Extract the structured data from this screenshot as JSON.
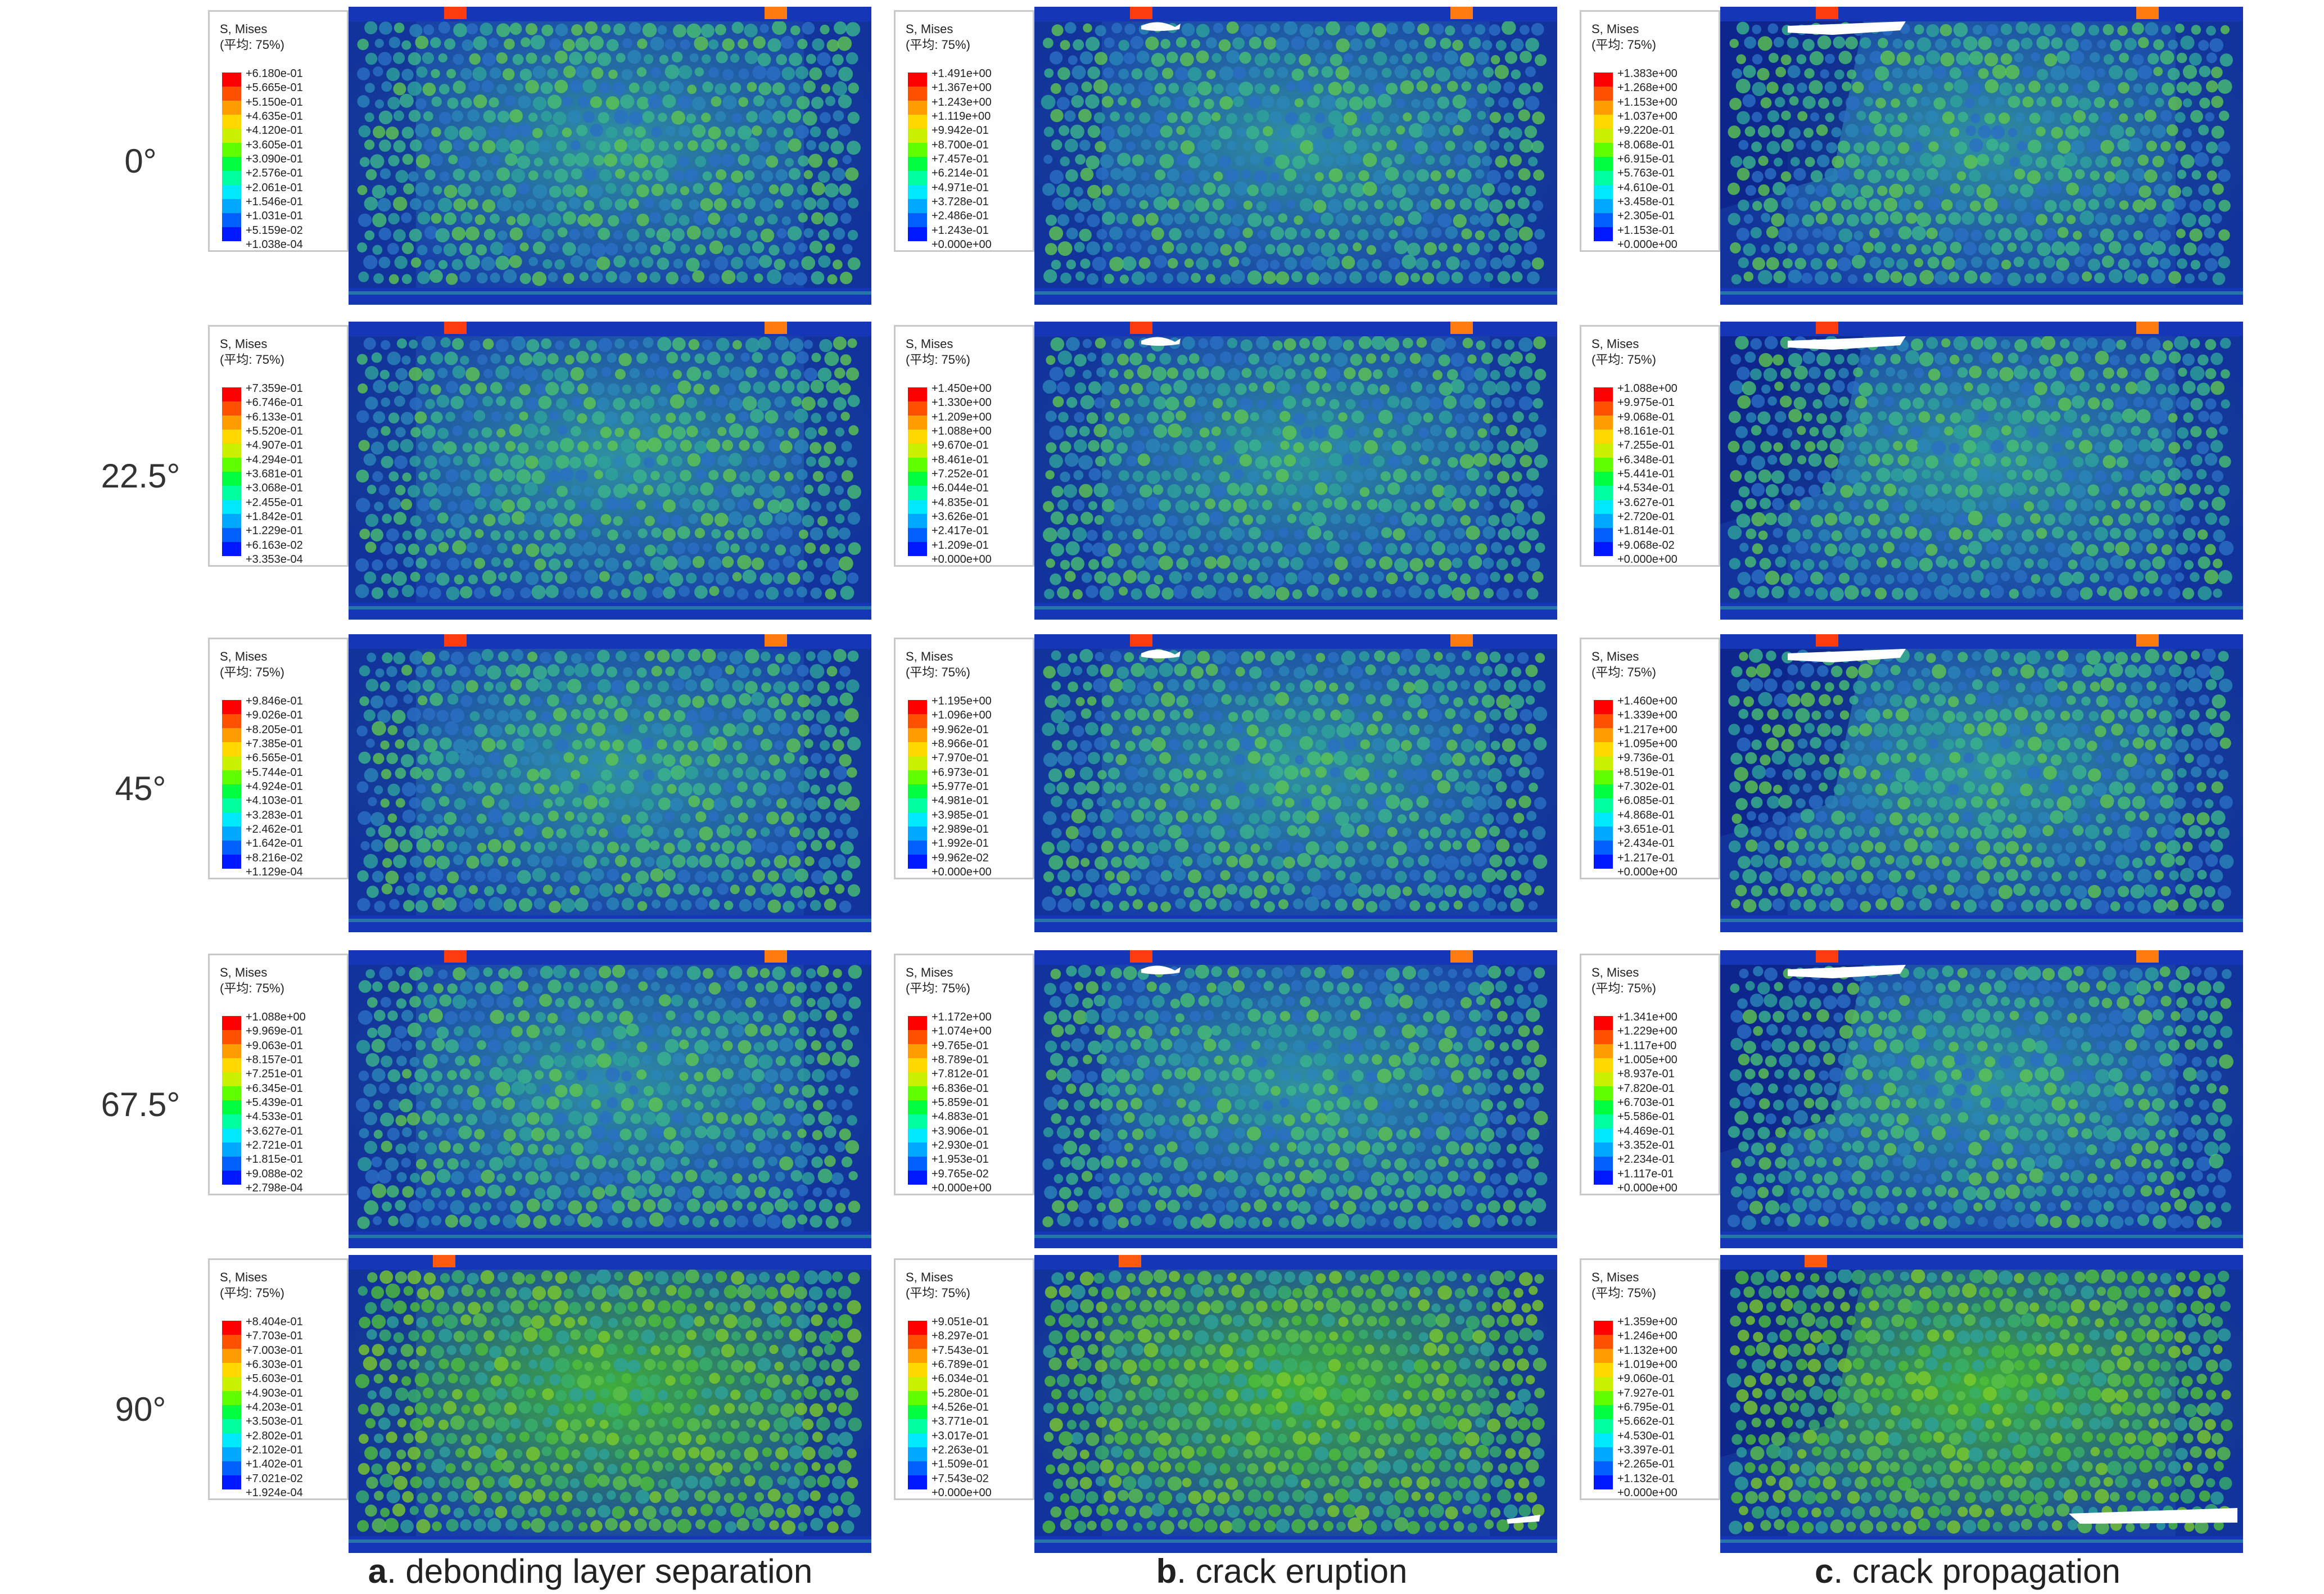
{
  "rows": [
    {
      "label": "0°"
    },
    {
      "label": "22.5°"
    },
    {
      "label": "45°"
    },
    {
      "label": "67.5°"
    },
    {
      "label": "90°"
    }
  ],
  "captions": [
    {
      "letter": "a",
      "text": ". debonding layer separation"
    },
    {
      "letter": "b",
      "text": ". crack eruption"
    },
    {
      "letter": "c",
      "text": ". crack propagation"
    }
  ],
  "legend_title": "S, Mises",
  "legend_subtitle": "(平均: 75%)",
  "legend_colors": [
    "#ff0000",
    "#ff5000",
    "#ff9c00",
    "#ffd800",
    "#c8f000",
    "#60ff00",
    "#00ff40",
    "#00ffa0",
    "#00e8ff",
    "#00a8ff",
    "#0060ff",
    "#0018ff"
  ],
  "legends": [
    [
      "+6.180e-01",
      "+5.665e-01",
      "+5.150e-01",
      "+4.635e-01",
      "+4.120e-01",
      "+3.605e-01",
      "+3.090e-01",
      "+2.576e-01",
      "+2.061e-01",
      "+1.546e-01",
      "+1.031e-01",
      "+5.159e-02",
      "+1.038e-04"
    ],
    [
      "+1.491e+00",
      "+1.367e+00",
      "+1.243e+00",
      "+1.119e+00",
      "+9.942e-01",
      "+8.700e-01",
      "+7.457e-01",
      "+6.214e-01",
      "+4.971e-01",
      "+3.728e-01",
      "+2.486e-01",
      "+1.243e-01",
      "+0.000e+00"
    ],
    [
      "+1.383e+00",
      "+1.268e+00",
      "+1.153e+00",
      "+1.037e+00",
      "+9.220e-01",
      "+8.068e-01",
      "+6.915e-01",
      "+5.763e-01",
      "+4.610e-01",
      "+3.458e-01",
      "+2.305e-01",
      "+1.153e-01",
      "+0.000e+00"
    ],
    [
      "+7.359e-01",
      "+6.746e-01",
      "+6.133e-01",
      "+5.520e-01",
      "+4.907e-01",
      "+4.294e-01",
      "+3.681e-01",
      "+3.068e-01",
      "+2.455e-01",
      "+1.842e-01",
      "+1.229e-01",
      "+6.163e-02",
      "+3.353e-04"
    ],
    [
      "+1.450e+00",
      "+1.330e+00",
      "+1.209e+00",
      "+1.088e+00",
      "+9.670e-01",
      "+8.461e-01",
      "+7.252e-01",
      "+6.044e-01",
      "+4.835e-01",
      "+3.626e-01",
      "+2.417e-01",
      "+1.209e-01",
      "+0.000e+00"
    ],
    [
      "+1.088e+00",
      "+9.975e-01",
      "+9.068e-01",
      "+8.161e-01",
      "+7.255e-01",
      "+6.348e-01",
      "+5.441e-01",
      "+4.534e-01",
      "+3.627e-01",
      "+2.720e-01",
      "+1.814e-01",
      "+9.068e-02",
      "+0.000e+00"
    ],
    [
      "+9.846e-01",
      "+9.026e-01",
      "+8.205e-01",
      "+7.385e-01",
      "+6.565e-01",
      "+5.744e-01",
      "+4.924e-01",
      "+4.103e-01",
      "+3.283e-01",
      "+2.462e-01",
      "+1.642e-01",
      "+8.216e-02",
      "+1.129e-04"
    ],
    [
      "+1.195e+00",
      "+1.096e+00",
      "+9.962e-01",
      "+8.966e-01",
      "+7.970e-01",
      "+6.973e-01",
      "+5.977e-01",
      "+4.981e-01",
      "+3.985e-01",
      "+2.989e-01",
      "+1.992e-01",
      "+9.962e-02",
      "+0.000e+00"
    ],
    [
      "+1.460e+00",
      "+1.339e+00",
      "+1.217e+00",
      "+1.095e+00",
      "+9.736e-01",
      "+8.519e-01",
      "+7.302e-01",
      "+6.085e-01",
      "+4.868e-01",
      "+3.651e-01",
      "+2.434e-01",
      "+1.217e-01",
      "+0.000e+00"
    ],
    [
      "+1.088e+00",
      "+9.969e-01",
      "+9.063e-01",
      "+8.157e-01",
      "+7.251e-01",
      "+6.345e-01",
      "+5.439e-01",
      "+4.533e-01",
      "+3.627e-01",
      "+2.721e-01",
      "+1.815e-01",
      "+9.088e-02",
      "+2.798e-04"
    ],
    [
      "+1.172e+00",
      "+1.074e+00",
      "+9.765e-01",
      "+8.789e-01",
      "+7.812e-01",
      "+6.836e-01",
      "+5.859e-01",
      "+4.883e-01",
      "+3.906e-01",
      "+2.930e-01",
      "+1.953e-01",
      "+9.765e-02",
      "+0.000e+00"
    ],
    [
      "+1.341e+00",
      "+1.229e+00",
      "+1.117e+00",
      "+1.005e+00",
      "+8.937e-01",
      "+7.820e-01",
      "+6.703e-01",
      "+5.586e-01",
      "+4.469e-01",
      "+3.352e-01",
      "+2.234e-01",
      "+1.117e-01",
      "+0.000e+00"
    ],
    [
      "+8.404e-01",
      "+7.703e-01",
      "+7.003e-01",
      "+6.303e-01",
      "+5.603e-01",
      "+4.903e-01",
      "+4.203e-01",
      "+3.503e-01",
      "+2.802e-01",
      "+2.102e-01",
      "+1.402e-01",
      "+7.021e-02",
      "+1.924e-04"
    ],
    [
      "+9.051e-01",
      "+8.297e-01",
      "+7.543e-01",
      "+6.789e-01",
      "+6.034e-01",
      "+5.280e-01",
      "+4.526e-01",
      "+3.771e-01",
      "+3.017e-01",
      "+2.263e-01",
      "+1.509e-01",
      "+7.543e-02",
      "+0.000e+00"
    ],
    [
      "+1.359e+00",
      "+1.246e+00",
      "+1.132e+00",
      "+1.019e+00",
      "+9.060e-01",
      "+7.927e-01",
      "+6.795e-01",
      "+5.662e-01",
      "+4.530e-01",
      "+3.397e-01",
      "+2.265e-01",
      "+1.132e-01",
      "+0.000e+00"
    ]
  ]
}
